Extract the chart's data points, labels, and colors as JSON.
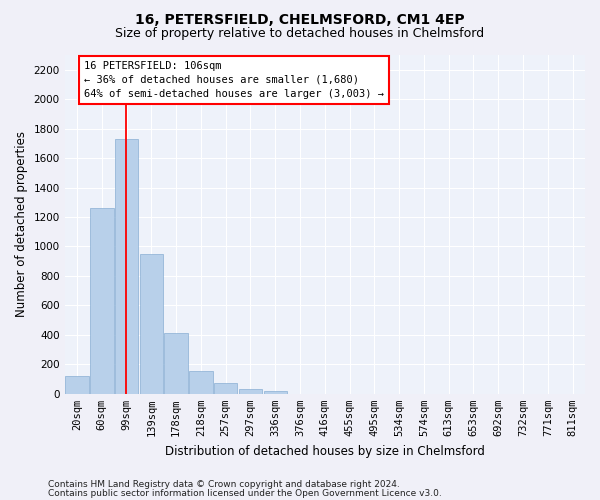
{
  "title": "16, PETERSFIELD, CHELMSFORD, CM1 4EP",
  "subtitle": "Size of property relative to detached houses in Chelmsford",
  "xlabel": "Distribution of detached houses by size in Chelmsford",
  "ylabel": "Number of detached properties",
  "footnote1": "Contains HM Land Registry data © Crown copyright and database right 2024.",
  "footnote2": "Contains public sector information licensed under the Open Government Licence v3.0.",
  "categories": [
    "20sqm",
    "60sqm",
    "99sqm",
    "139sqm",
    "178sqm",
    "218sqm",
    "257sqm",
    "297sqm",
    "336sqm",
    "376sqm",
    "416sqm",
    "455sqm",
    "495sqm",
    "534sqm",
    "574sqm",
    "613sqm",
    "653sqm",
    "692sqm",
    "732sqm",
    "771sqm",
    "811sqm"
  ],
  "values": [
    120,
    1260,
    1730,
    950,
    410,
    155,
    75,
    35,
    20,
    0,
    0,
    0,
    0,
    0,
    0,
    0,
    0,
    0,
    0,
    0,
    0
  ],
  "bar_color": "#b8d0ea",
  "bar_edge_color": "#8aafd4",
  "property_line_label": "16 PETERSFIELD: 106sqm",
  "annotation_line1": "← 36% of detached houses are smaller (1,680)",
  "annotation_line2": "64% of semi-detached houses are larger (3,003) →",
  "ylim": [
    0,
    2300
  ],
  "yticks": [
    0,
    200,
    400,
    600,
    800,
    1000,
    1200,
    1400,
    1600,
    1800,
    2000,
    2200
  ],
  "background_color": "#eef2fa",
  "grid_color": "#ffffff",
  "title_fontsize": 10,
  "subtitle_fontsize": 9,
  "axis_label_fontsize": 8.5,
  "tick_fontsize": 7.5,
  "annotation_fontsize": 7.5,
  "footnote_fontsize": 6.5
}
